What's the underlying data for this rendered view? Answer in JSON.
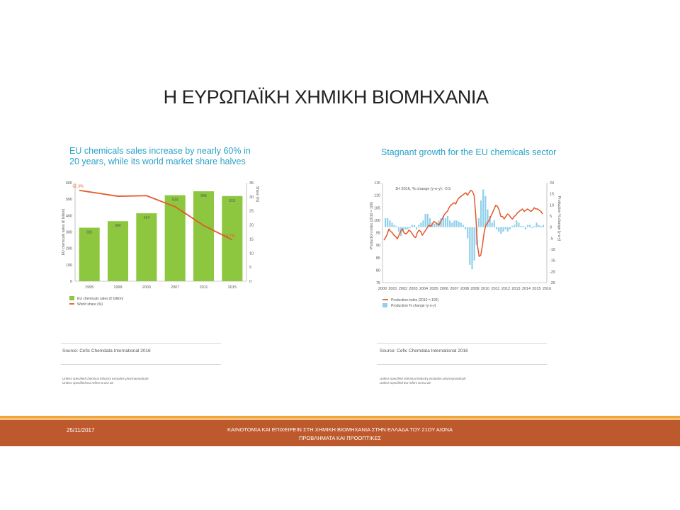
{
  "slide": {
    "title": "Η ΕΥΡΩΠΑΪΚΗ ΧΗΜΙΚΗ ΒΙΟΜΗΧΑΝΙΑ",
    "footer_date": "25/11/2017",
    "footer_line1": "ΚΑΙΝΟΤΟΜΙΑ ΚΑΙ ΕΠΙΧΕΙΡΕΙΝ ΣΤΗ ΧΗΜΙΚΗ ΒΙΟΜΗΧΑΝΙΑ ΣΤΗΝ ΕΛΛΑΔΑ ΤΟΥ 21ΟΥ ΑΙΩΝΑ",
    "footer_line2": "ΠΡΟΒΛΗΜΑΤΑ ΚΑΙ ΠΡΟΟΠΤΙΚΕΣ",
    "footer_color": "#bd5a2d"
  },
  "left_panel": {
    "title_line1": "EU chemicals sales increase by nearly 60% in",
    "title_line2": "20 years, while its world market share halves",
    "source": "Source: Cefic Chemdata International 2016",
    "note1": "Unless specified chemical industry excludes pharmaceuticals",
    "note2": "Unless specified EU refers to EU 28"
  },
  "right_panel": {
    "title": "Stagnant growth for the EU chemicals sector",
    "source": "Source: Cefic Chemdata International 2016",
    "note1": "Unless specified chemical industry excludes pharmaceuticals",
    "note2": "Unless specified EU refers to EU 28"
  },
  "chart_data": [
    {
      "type": "bar",
      "title": "EU chemicals sales increase by nearly 60% in 20 years, while its world market share halves",
      "categories": [
        "1995",
        "1999",
        "2003",
        "2007",
        "2011",
        "2015"
      ],
      "ylabel": "EU chemicals sales (€ billion)",
      "y2label": "Share (%)",
      "ylim": [
        0,
        600
      ],
      "y2lim": [
        0,
        35
      ],
      "yticks": [
        0,
        100,
        200,
        300,
        400,
        500,
        600
      ],
      "y2ticks": [
        0,
        5,
        10,
        15,
        20,
        25,
        30,
        35
      ],
      "series": [
        {
          "name": "EU chemicals sales (€ billion)",
          "kind": "bar",
          "color": "#8dc63f",
          "values": [
            326,
            366,
            414,
            524,
            548,
            519
          ],
          "labels": [
            "326",
            "366",
            "414",
            "524",
            "548",
            "519"
          ]
        },
        {
          "name": "World share (%)",
          "kind": "line",
          "color": "#e2592a",
          "axis": "right",
          "values": [
            32.3,
            30.2,
            30.4,
            26.5,
            19.8,
            14.7
          ],
          "point_labels": [
            "32.3%",
            "",
            "",
            "",
            "",
            "14.7%"
          ]
        }
      ],
      "legend_position": "bottom-left",
      "grid": false
    },
    {
      "type": "bar",
      "title": "Stagnant growth for the EU chemicals sector",
      "annotation": "1H 2016, % change (y-o-y): -0.5",
      "ylabel": "Production index (2010 = 100)",
      "y2label": "Production % change (y-o-y)",
      "ylim": [
        75,
        115
      ],
      "y2lim": [
        -25,
        20
      ],
      "yticks": [
        75,
        80,
        85,
        90,
        95,
        100,
        105,
        110,
        115
      ],
      "y2ticks": [
        -25,
        -20,
        -15,
        -10,
        -5,
        0,
        5,
        10,
        15,
        20
      ],
      "x_labels": [
        "2000",
        "2001",
        "2002",
        "2003",
        "2004",
        "2005",
        "2006",
        "2007",
        "2008",
        "2009",
        "2010",
        "2011",
        "2012",
        "2013",
        "2014",
        "2015",
        "2016"
      ],
      "series": [
        {
          "name": "Production index (2010 = 100)",
          "kind": "line",
          "color": "#e2592a",
          "axis": "left",
          "values": [
            92.0,
            93.0,
            94.5,
            96.5,
            95.5,
            95.0,
            94.0,
            93.5,
            92.5,
            94.0,
            95.5,
            96.5,
            95.0,
            94.5,
            95.0,
            96.0,
            95.5,
            94.5,
            93.5,
            93.0,
            95.0,
            96.0,
            95.5,
            94.0,
            95.0,
            96.0,
            97.0,
            98.0,
            97.5,
            98.5,
            99.5,
            99.0,
            98.5,
            98.0,
            99.5,
            100.5,
            102.0,
            103.0,
            103.5,
            105.0,
            106.0,
            106.5,
            107.0,
            106.5,
            108.0,
            109.0,
            109.5,
            110.0,
            110.5,
            111.0,
            110.0,
            111.0,
            112.0,
            111.5,
            110.0,
            102.0,
            90.0,
            85.5,
            86.0,
            90.0,
            95.0,
            98.0,
            99.0,
            100.0,
            101.5,
            103.0,
            104.5,
            106.0,
            105.5,
            104.0,
            101.5,
            101.5,
            100.5,
            101.5,
            102.5,
            102.0,
            101.0,
            100.5,
            101.5,
            102.0,
            103.0,
            103.5,
            104.0,
            104.5,
            103.5,
            104.0,
            104.5,
            104.0,
            103.5,
            104.0,
            105.0,
            104.5,
            104.5,
            104.0,
            103.5,
            102.5
          ]
        },
        {
          "name": "Production % change (y-o-y)",
          "kind": "bar",
          "color": "#8fd0ea",
          "axis": "right",
          "values": [
            4.0,
            4.0,
            3.0,
            2.0,
            1.0,
            0.5,
            -2.0,
            -4.0,
            -2.0,
            -1.0,
            -1.0,
            -0.5,
            1.0,
            1.0,
            -1.0,
            1.0,
            2.0,
            3.0,
            6.0,
            6.0,
            4.0,
            2.0,
            1.5,
            2.0,
            3.0,
            4.0,
            5.0,
            4.0,
            5.0,
            3.0,
            2.0,
            3.0,
            3.0,
            2.5,
            2.0,
            1.0,
            -1.0,
            -5.0,
            -17.0,
            -19.0,
            -15.0,
            -8.0,
            4.0,
            12.0,
            17.0,
            14.0,
            8.0,
            5.0,
            2.0,
            3.0,
            -1.0,
            -2.0,
            -3.0,
            -2.0,
            -1.0,
            -2.0,
            -1.0,
            0.5,
            1.0,
            3.0,
            2.0,
            0.5,
            0.5,
            -1.0,
            1.0,
            1.0,
            -0.5,
            0.5,
            2.0,
            1.0,
            0.5,
            1.0
          ]
        }
      ],
      "legend_position": "bottom-left",
      "grid": false
    }
  ]
}
